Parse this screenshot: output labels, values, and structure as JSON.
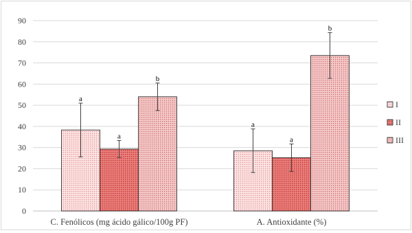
{
  "chart_data": {
    "type": "bar",
    "categories": [
      "C. Fenólicos (mg ácido gálico/100g PF)",
      "A. Antioxidante (%)"
    ],
    "series": [
      {
        "name": "I",
        "values": [
          38.3,
          28.5
        ],
        "errors": [
          12.7,
          10.3
        ],
        "letters": [
          "a",
          "a"
        ],
        "color": "#f4b6b6"
      },
      {
        "name": "II",
        "values": [
          29.3,
          25.2
        ],
        "errors": [
          4.0,
          6.5
        ],
        "letters": [
          "a",
          "a"
        ],
        "color": "#e06666"
      },
      {
        "name": "III",
        "values": [
          54.0,
          73.5
        ],
        "errors": [
          6.5,
          10.8
        ],
        "letters": [
          "b",
          "b"
        ],
        "color": "#e49a9a"
      }
    ],
    "y_ticks": [
      "0",
      "10",
      "20",
      "30",
      "40",
      "50",
      "60",
      "70",
      "80",
      "90"
    ],
    "ylim": [
      0,
      90
    ],
    "grid": true,
    "legend_position": "right",
    "title": "",
    "xlabel": "",
    "ylabel": ""
  }
}
